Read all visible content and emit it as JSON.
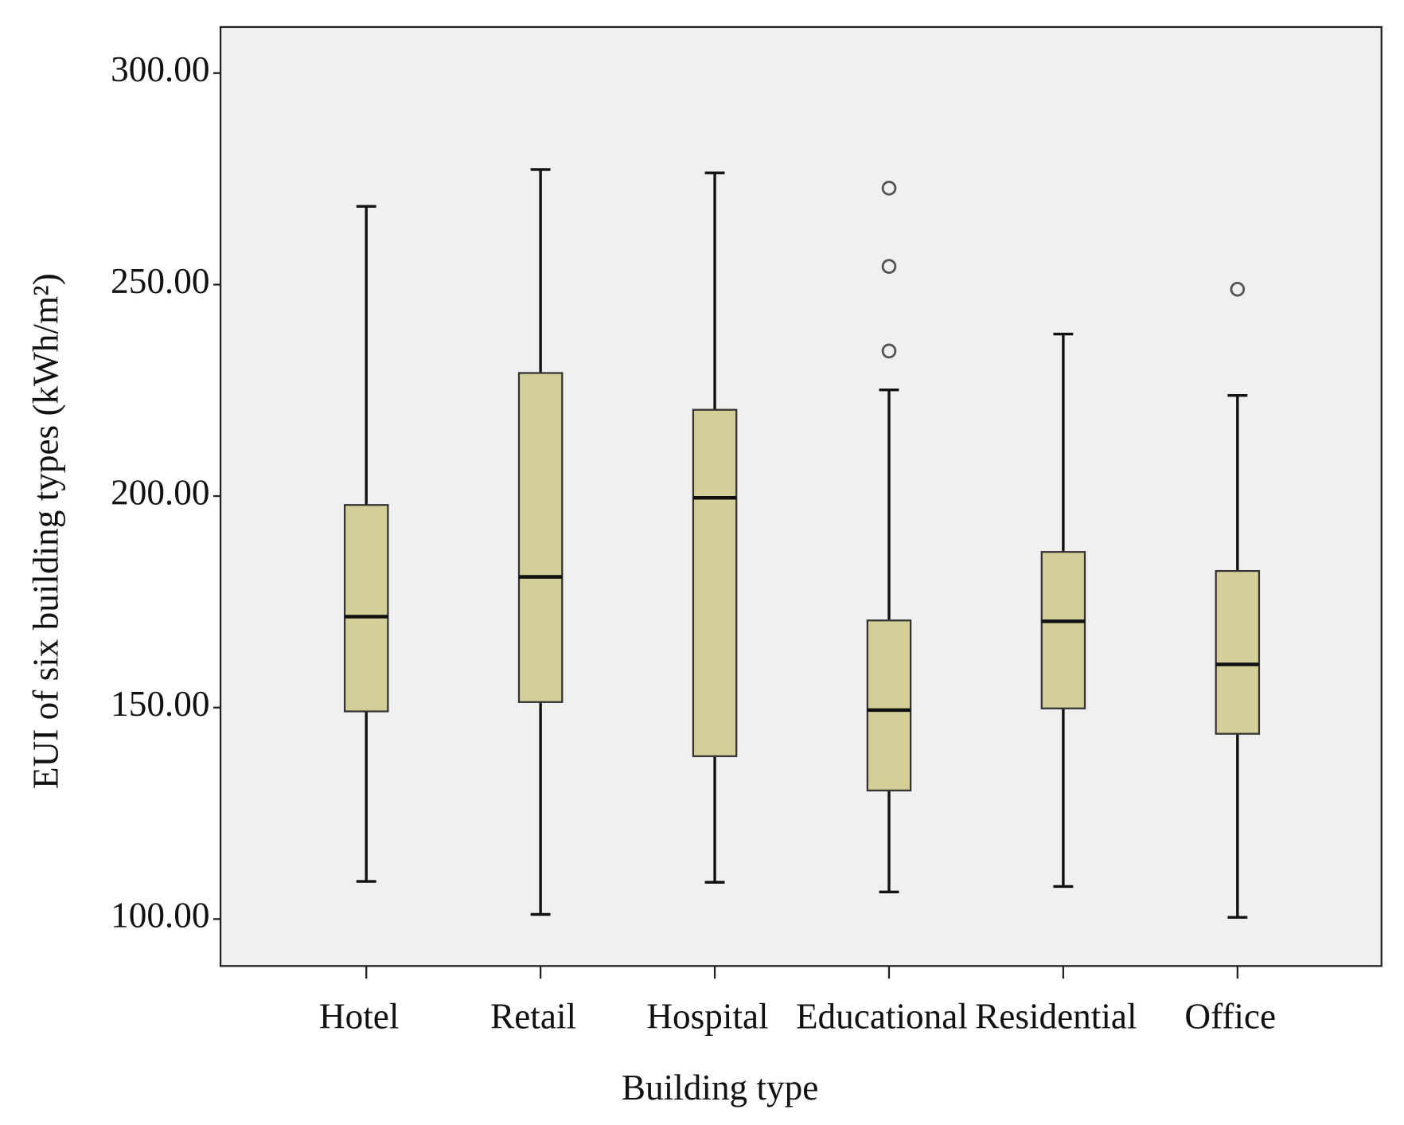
{
  "chart_data": {
    "type": "box",
    "x_label": "Building type",
    "y_label": "EUI  of six building types (kWh/m²)",
    "categories": [
      "Hotel",
      "Retail",
      "Hospital",
      "Educational",
      "Residential",
      "Office"
    ],
    "whisker_low": [
      108.9,
      101.1,
      108.7,
      106.4,
      107.7,
      100.4
    ],
    "q1": [
      149.1,
      151.3,
      138.5,
      130.4,
      149.8,
      143.8
    ],
    "median": [
      171.5,
      180.9,
      199.6,
      149.4,
      170.4,
      160.2
    ],
    "q3": [
      197.9,
      229.1,
      220.4,
      170.6,
      186.8,
      182.3
    ],
    "whisker_high": [
      268.5,
      277.2,
      276.4,
      225.1,
      238.3,
      223.8
    ],
    "outliers": [
      [],
      [],
      [],
      [
        272.8,
        254.3,
        234.3
      ],
      [],
      [
        248.9
      ]
    ],
    "color": "#d4cf98",
    "ylim": [
      88.9,
      310.9
    ],
    "yticks": [
      {
        "value": 100,
        "label": "100.00"
      },
      {
        "value": 150,
        "label": "150.00"
      },
      {
        "value": 200,
        "label": "200.00"
      },
      {
        "value": 250,
        "label": "250.00"
      },
      {
        "value": 300,
        "label": "300.00"
      }
    ]
  }
}
